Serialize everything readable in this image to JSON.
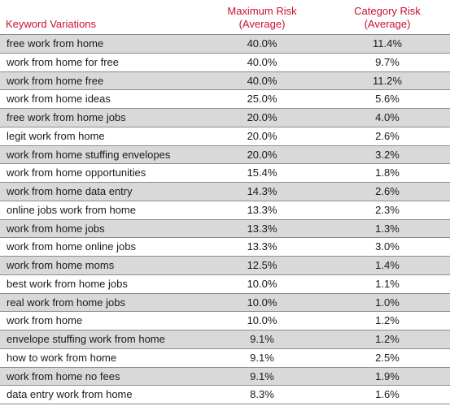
{
  "table": {
    "headers": {
      "keyword": "Keyword Variations",
      "max_risk_line1": "Maximum Risk",
      "max_risk_line2": "(Average)",
      "cat_risk_line1": "Category Risk",
      "cat_risk_line2": "(Average)"
    },
    "colors": {
      "header_text": "#c8102e",
      "shaded_row": "#d9d9d9",
      "divider": "#8c8c8c"
    },
    "rows": [
      {
        "keyword": "free work from home",
        "max": "40.0%",
        "cat": "11.4%",
        "shaded": true
      },
      {
        "keyword": "work from home for free",
        "max": "40.0%",
        "cat": "9.7%",
        "shaded": false
      },
      {
        "keyword": "work from home free",
        "max": "40.0%",
        "cat": "11.2%",
        "shaded": true
      },
      {
        "keyword": "work from home ideas",
        "max": "25.0%",
        "cat": "5.6%",
        "shaded": false
      },
      {
        "keyword": "free work from home jobs",
        "max": "20.0%",
        "cat": "4.0%",
        "shaded": true
      },
      {
        "keyword": "legit work from home",
        "max": "20.0%",
        "cat": "2.6%",
        "shaded": false
      },
      {
        "keyword": "work from home stuffing envelopes",
        "max": "20.0%",
        "cat": "3.2%",
        "shaded": true
      },
      {
        "keyword": "work from home opportunities",
        "max": "15.4%",
        "cat": "1.8%",
        "shaded": false
      },
      {
        "keyword": "work from home data entry",
        "max": "14.3%",
        "cat": "2.6%",
        "shaded": true
      },
      {
        "keyword": "online jobs work from home",
        "max": "13.3%",
        "cat": "2.3%",
        "shaded": false
      },
      {
        "keyword": "work from home jobs",
        "max": "13.3%",
        "cat": "1.3%",
        "shaded": true
      },
      {
        "keyword": "work from home online jobs",
        "max": "13.3%",
        "cat": "3.0%",
        "shaded": false
      },
      {
        "keyword": "work from home moms",
        "max": "12.5%",
        "cat": "1.4%",
        "shaded": true
      },
      {
        "keyword": "best work from home jobs",
        "max": "10.0%",
        "cat": "1.1%",
        "shaded": false
      },
      {
        "keyword": "real work from home jobs",
        "max": "10.0%",
        "cat": "1.0%",
        "shaded": true
      },
      {
        "keyword": "work from home",
        "max": "10.0%",
        "cat": "1.2%",
        "shaded": false
      },
      {
        "keyword": "envelope stuffing work from home",
        "max": "9.1%",
        "cat": "1.2%",
        "shaded": true
      },
      {
        "keyword": "how to work from home",
        "max": "9.1%",
        "cat": "2.5%",
        "shaded": false
      },
      {
        "keyword": "work from home no fees",
        "max": "9.1%",
        "cat": "1.9%",
        "shaded": true
      },
      {
        "keyword": "data entry work from home",
        "max": "8.3%",
        "cat": "1.6%",
        "shaded": false
      }
    ]
  }
}
